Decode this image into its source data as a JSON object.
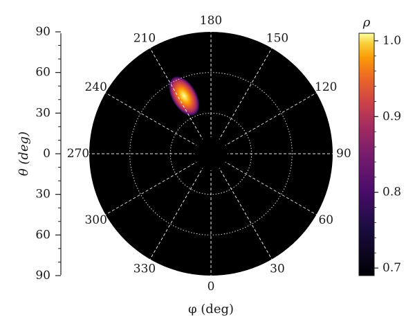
{
  "chart_data": {
    "type": "heatmap",
    "projection": "polar",
    "title": "",
    "xlabel": "φ (deg)",
    "ylabel": "θ (deg)",
    "colorbar_label": "ρ",
    "background_color": "#000000",
    "colormap": "inferno",
    "phi_ticks": [
      "0",
      "30",
      "60",
      "90",
      "120",
      "150",
      "180",
      "210",
      "240",
      "270",
      "300",
      "330"
    ],
    "theta_ticks": [
      "90",
      "60",
      "30",
      "0",
      "30",
      "60",
      "90"
    ],
    "theta_range": [
      0,
      90
    ],
    "grid_rings_theta": [
      30,
      60
    ],
    "spokes_every_deg": 30,
    "grid_style": "dashed white spokes, dotted white rings",
    "colorbar": {
      "range": [
        0.69,
        1.01
      ],
      "ticks": [
        "0.7",
        "0.8",
        "0.9",
        "1.0"
      ],
      "tick_values": [
        0.7,
        0.8,
        0.9,
        1.0
      ],
      "placement": "right"
    },
    "peak": {
      "phi_deg": 205,
      "theta_deg": 47,
      "value": 1.0
    },
    "background_value": 0.69
  }
}
